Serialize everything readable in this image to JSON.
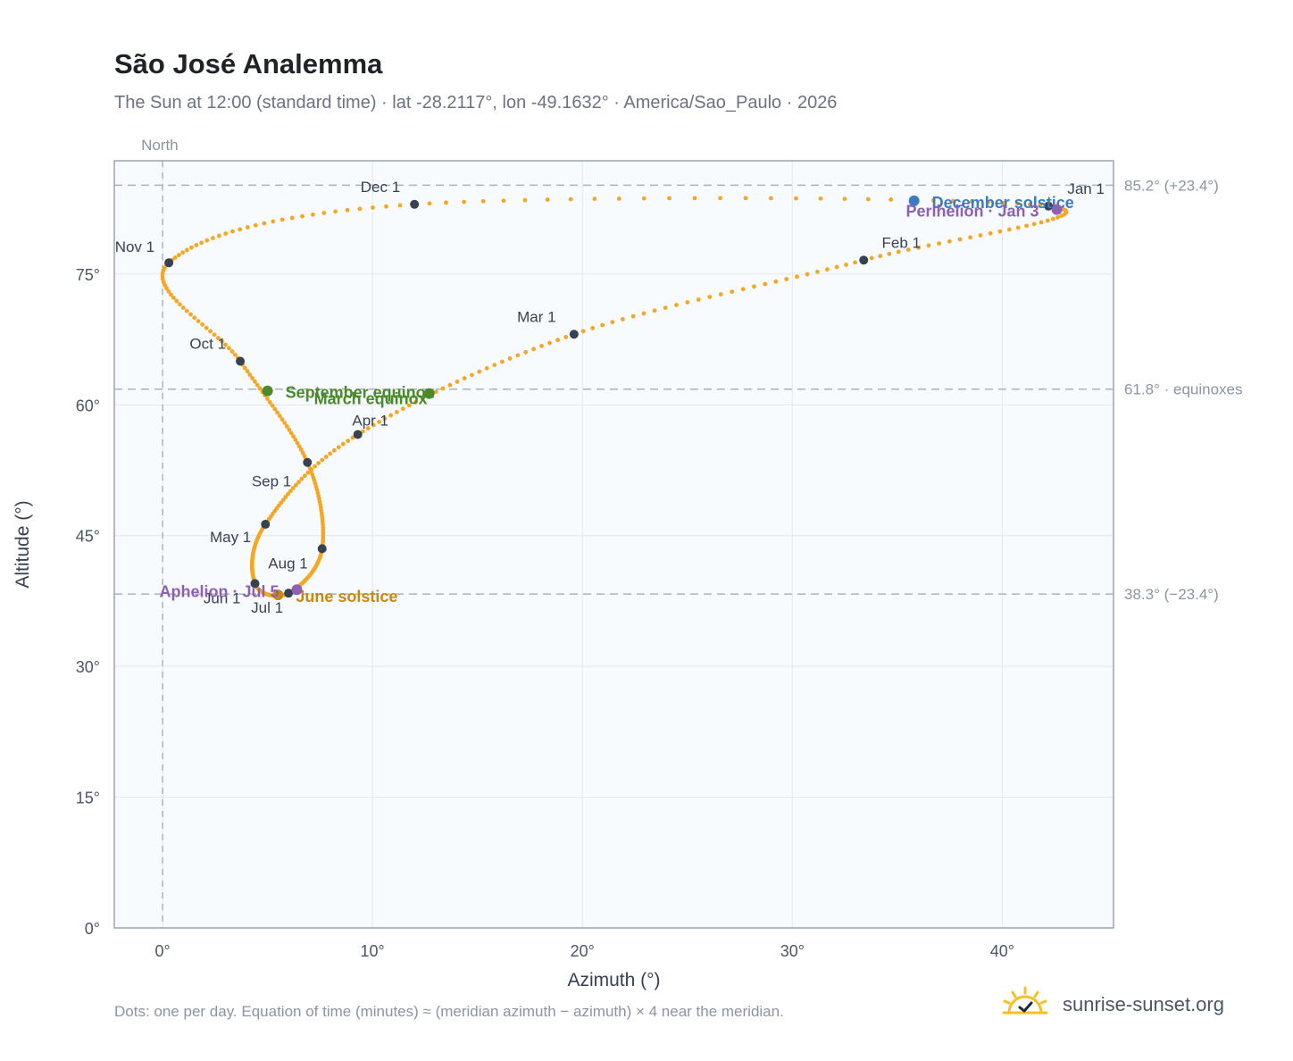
{
  "title": "São José Analemma",
  "subtitle": "The Sun at 12:00 (standard time) · lat -28.2117°, lon -49.1632° · America/Sao_Paulo · 2026",
  "footnote": "Dots: one per day. Equation of time (minutes) ≈ (meridian azimuth − azimuth) × 4 near the meridian.",
  "brand": {
    "name": "sunrise-sunset.org",
    "logo_icon": "sun-check-icon"
  },
  "chart_data": {
    "type": "scatter",
    "title": "São José Analemma",
    "xlabel": "Azimuth (°)",
    "ylabel": "Altitude (°)",
    "xlim": [
      -2.3,
      45.3
    ],
    "ylim": [
      0,
      88
    ],
    "xticks": [
      0,
      10,
      20,
      30,
      40
    ],
    "xtick_labels": [
      "0°",
      "10°",
      "20°",
      "30°",
      "40°"
    ],
    "yticks": [
      0,
      15,
      30,
      45,
      60,
      75
    ],
    "ytick_labels": [
      "0°",
      "15°",
      "30°",
      "45°",
      "60°",
      "75°"
    ],
    "grid": true,
    "north_label": "North",
    "north_azimuth": 0,
    "reference_lines": [
      {
        "altitude": 85.2,
        "label": "85.2° (+23.4°)"
      },
      {
        "altitude": 61.8,
        "label": "61.8° · equinoxes"
      },
      {
        "altitude": 38.3,
        "label": "38.3° (−23.4°)"
      }
    ],
    "curve_color": "#f5a623",
    "month_color": "#374151",
    "month_markers": [
      {
        "label": "Jan 1",
        "x": 42.2,
        "y": 82.8
      },
      {
        "label": "Feb 1",
        "x": 33.4,
        "y": 76.6
      },
      {
        "label": "Mar 1",
        "x": 19.6,
        "y": 68.1
      },
      {
        "label": "Apr 1",
        "x": 9.3,
        "y": 56.6
      },
      {
        "label": "May 1",
        "x": 4.9,
        "y": 46.3
      },
      {
        "label": "Jun 1",
        "x": 4.4,
        "y": 39.5
      },
      {
        "label": "Jul 1",
        "x": 6.0,
        "y": 38.4
      },
      {
        "label": "Aug 1",
        "x": 7.6,
        "y": 43.5
      },
      {
        "label": "Sep 1",
        "x": 6.9,
        "y": 53.4
      },
      {
        "label": "Oct 1",
        "x": 3.7,
        "y": 65.0
      },
      {
        "label": "Nov 1",
        "x": 0.3,
        "y": 76.3
      },
      {
        "label": "Dec 1",
        "x": 12.0,
        "y": 83.0
      }
    ],
    "events": [
      {
        "label": "December solstice",
        "x": 35.8,
        "y": 83.4,
        "color": "#3b7bbf"
      },
      {
        "label": "Perihelion · Jan 3",
        "x": 42.6,
        "y": 82.4,
        "color": "#8e5fb5"
      },
      {
        "label": "March equinox",
        "x": 12.7,
        "y": 61.3,
        "color": "#4a8a2a"
      },
      {
        "label": "September equinox",
        "x": 5.0,
        "y": 61.6,
        "color": "#4a8a2a"
      },
      {
        "label": "June solstice",
        "x": 5.5,
        "y": 38.2,
        "color": "#c68a12"
      },
      {
        "label": "Aphelion · Jul 5",
        "x": 6.4,
        "y": 38.8,
        "color": "#8e5fb5"
      }
    ]
  }
}
